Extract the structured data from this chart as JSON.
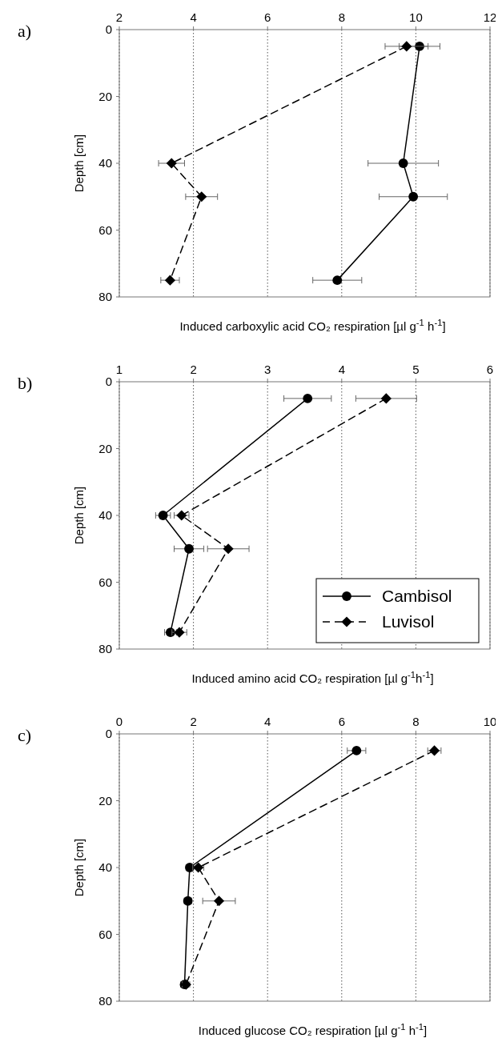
{
  "chart_data": [
    {
      "type": "line",
      "title": "a)",
      "xlabel": "Induced carboxylic acid CO₂ respiration [µl g$^{-1}$ h$^{-1}$]",
      "ylabel": "Depth [cm]",
      "xlim": [
        2,
        12
      ],
      "xticks": [
        2,
        4,
        6,
        8,
        10,
        12
      ],
      "ylim": [
        80,
        0
      ],
      "yticks": [
        0,
        20,
        40,
        60,
        80
      ],
      "grid": "x",
      "legend": false,
      "series": [
        {
          "color": "#000000",
          "marker": "circle",
          "line_style": "solid",
          "x": [
            10.1,
            9.66,
            9.93,
            7.88
          ],
          "values": [
            5,
            40,
            50,
            75
          ],
          "xerrors": [
            0.55,
            0.95,
            0.92,
            0.66
          ]
        },
        {
          "color": "#000000",
          "marker": "diamond",
          "line_style": "dashed",
          "x": [
            9.75,
            3.41,
            4.22,
            3.37
          ],
          "values": [
            5,
            40,
            50,
            75
          ],
          "xerrors": [
            0.58,
            0.35,
            0.43,
            0.25
          ]
        }
      ]
    },
    {
      "type": "line",
      "title": "b)",
      "xlabel": "Induced amino acid CO₂ respiration [µl g$^{-1}$h$^{-1}$]",
      "ylabel": "Depth [cm]",
      "xlim": [
        1,
        6
      ],
      "xticks": [
        1,
        2,
        3,
        4,
        5,
        6
      ],
      "ylim": [
        80,
        0
      ],
      "yticks": [
        0,
        20,
        40,
        60,
        80
      ],
      "grid": "x",
      "legend": "bottom right",
      "series": [
        {
          "name": "Cambisol",
          "color": "#000000",
          "marker": "circle",
          "line_style": "solid",
          "x": [
            3.54,
            1.59,
            1.94,
            1.69
          ],
          "values": [
            5,
            40,
            50,
            75
          ],
          "xerrors": [
            0.32,
            0.1,
            0.2,
            0.08
          ]
        },
        {
          "name": "Luvisol",
          "color": "#000000",
          "marker": "diamond",
          "line_style": "dashed",
          "x": [
            4.6,
            1.84,
            2.47,
            1.81
          ],
          "values": [
            5,
            40,
            50,
            75
          ],
          "xerrors": [
            0.41,
            0.1,
            0.28,
            0.1
          ]
        }
      ]
    },
    {
      "type": "line",
      "title": "c)",
      "xlabel": "Induced glucose CO₂ respiration [µl g$^{-1}$ h$^{-1}$]",
      "ylabel": "Depth [cm]",
      "xlim": [
        0,
        10
      ],
      "xticks": [
        0,
        2,
        4,
        6,
        8,
        10
      ],
      "ylim": [
        80,
        0
      ],
      "yticks": [
        0,
        20,
        40,
        60,
        80
      ],
      "grid": "x",
      "legend": false,
      "series": [
        {
          "color": "#000000",
          "marker": "circle",
          "line_style": "solid",
          "x": [
            6.4,
            1.9,
            1.85,
            1.76
          ],
          "values": [
            5,
            40,
            50,
            75
          ],
          "xerrors": [
            0.25,
            0.1,
            0.1,
            0.1
          ]
        },
        {
          "color": "#000000",
          "marker": "diamond",
          "line_style": "dashed",
          "x": [
            8.5,
            2.13,
            2.69,
            1.8
          ],
          "values": [
            5,
            40,
            50,
            75
          ],
          "xerrors": [
            0.18,
            0.15,
            0.44,
            0.1
          ]
        }
      ]
    }
  ]
}
